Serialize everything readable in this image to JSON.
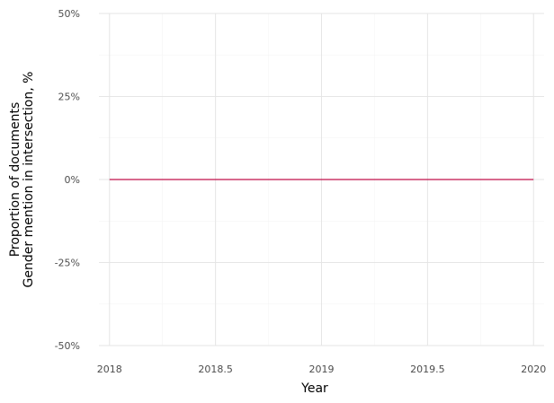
{
  "chart_data": {
    "type": "line",
    "title": "",
    "xlabel": "Year",
    "ylabel": [
      "Proportion of documents",
      "Gender mention in intersection, %"
    ],
    "xlim": [
      2017.95,
      2020.05
    ],
    "ylim": [
      -50,
      50
    ],
    "x_ticks": [
      {
        "value": 2018,
        "label": "2018"
      },
      {
        "value": 2018.5,
        "label": "2018.5"
      },
      {
        "value": 2019,
        "label": "2019"
      },
      {
        "value": 2019.5,
        "label": "2019.5"
      },
      {
        "value": 2020,
        "label": "2020"
      }
    ],
    "y_ticks": [
      {
        "value": 50,
        "label": "50%"
      },
      {
        "value": 25,
        "label": "25%"
      },
      {
        "value": 0,
        "label": "0%"
      },
      {
        "value": -25,
        "label": "-25%"
      },
      {
        "value": -50,
        "label": "-50%"
      }
    ],
    "x_minor_ticks": [
      2018.25,
      2018.75,
      2019.25,
      2019.75
    ],
    "y_minor_ticks": [
      37.5,
      12.5,
      -12.5,
      -37.5
    ],
    "grid": true,
    "legend": "none",
    "series": [
      {
        "color": "#c0124b",
        "x": [
          2018,
          2019,
          2020
        ],
        "y": [
          0,
          0,
          0
        ]
      }
    ],
    "colors": {
      "major_grid": "#e5e5e5",
      "minor_grid": "#f3f3f3",
      "tick_text": "#4d4d4d",
      "title_text": "#000000"
    }
  }
}
